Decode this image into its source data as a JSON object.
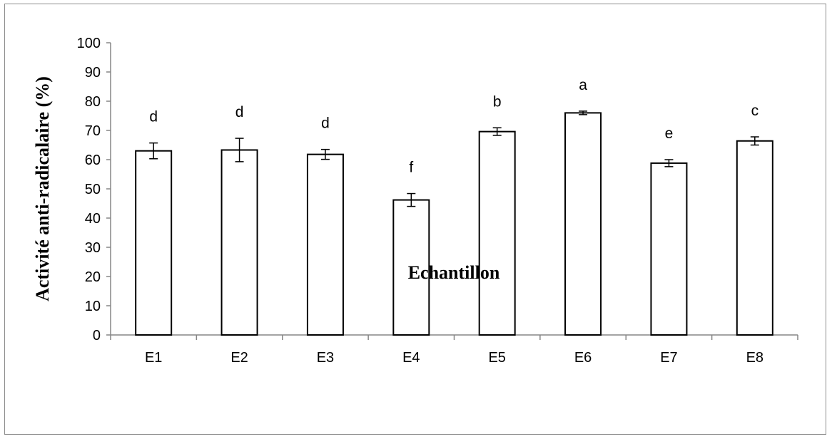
{
  "chart_data": {
    "type": "bar",
    "title": "",
    "xlabel": "Echantillon",
    "ylabel": "Activité anti-radicalaire (%)",
    "ylim": [
      0,
      100
    ],
    "yticks": [
      "0",
      "10",
      "20",
      "30",
      "40",
      "50",
      "60",
      "70",
      "80",
      "90",
      "100"
    ],
    "categories": [
      "E1",
      "E2",
      "E3",
      "E4",
      "E5",
      "E6",
      "E7",
      "E8"
    ],
    "values": [
      63,
      63.3,
      61.8,
      46.2,
      69.6,
      76,
      58.8,
      66.4
    ],
    "errors": [
      2.7,
      4,
      1.7,
      2.2,
      1.3,
      0.6,
      1.2,
      1.4
    ],
    "significance_letters": [
      "d",
      "d",
      "d",
      "f",
      "b",
      "a",
      "e",
      "c"
    ],
    "grid": false,
    "legend": "none",
    "bar_fill": "#ffffff",
    "bar_stroke": "#000000",
    "axis_color": "#868686"
  }
}
